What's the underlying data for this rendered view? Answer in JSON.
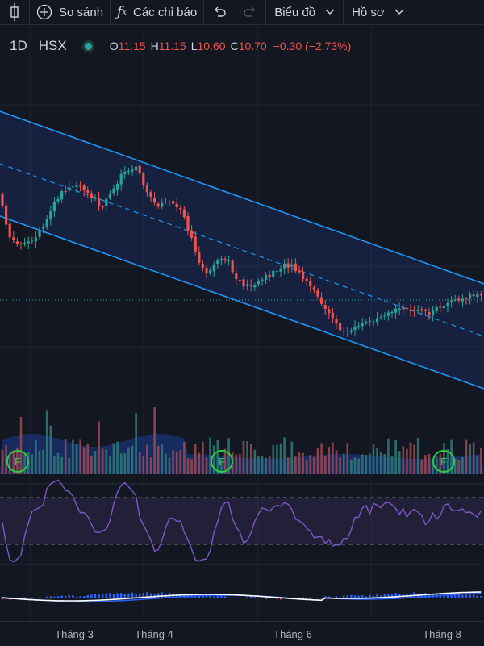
{
  "toolbar": {
    "compare_label": "So sánh",
    "indicators_label": "Các chỉ báo",
    "chart_type_label": "Biểu đồ",
    "profile_label": "Hồ sơ"
  },
  "legend": {
    "interval": "1D",
    "exchange": "HSX",
    "open_key": "O",
    "open": "11.15",
    "high_key": "H",
    "high": "11.15",
    "low_key": "L",
    "low": "10.60",
    "close_key": "C",
    "close": "10.70",
    "change": "−0.30 (−2.73%)"
  },
  "x_axis": {
    "labels": [
      "Tháng 3",
      "Tháng 4",
      "Tháng 6",
      "Tháng 8"
    ]
  },
  "volume_markers": [
    "F",
    "F",
    "F"
  ],
  "colors": {
    "up": "#26a69a",
    "down": "#ef5350",
    "channel": "#2962ff",
    "rsi": "#7e57c2",
    "background": "#131722"
  },
  "icons": [
    "candles-icon",
    "plus-circle-icon",
    "fx-icon",
    "undo-icon",
    "redo-icon",
    "chevron-down-icon"
  ]
}
